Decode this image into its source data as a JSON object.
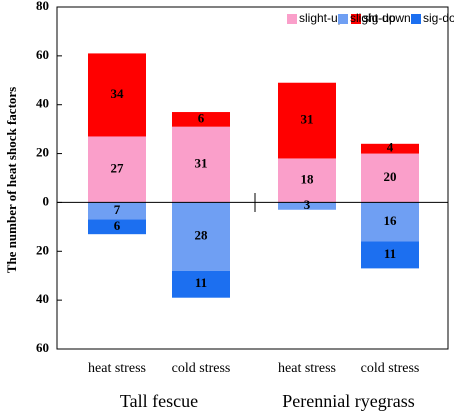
{
  "chart_data": {
    "type": "diverging-stacked-bar",
    "y_axis_label": "The number of heat shock factors",
    "categories": [
      "heat stress",
      "cold stress",
      "heat stress",
      "cold stress"
    ],
    "groups": [
      {
        "label": "Tall fescue",
        "categories": [
          0,
          1
        ]
      },
      {
        "label": "Perennial ryegrass",
        "categories": [
          2,
          3
        ]
      }
    ],
    "series": [
      {
        "name": "slight-up",
        "color": "#fa9fca",
        "values": [
          27,
          31,
          18,
          20
        ]
      },
      {
        "name": "sig-up",
        "color": "#ff0000",
        "values": [
          34,
          6,
          31,
          4
        ]
      },
      {
        "name": "slight-down",
        "color": "#6f9ff3",
        "values": [
          -7,
          -28,
          -3,
          -16
        ],
        "value_labels": [
          "7",
          "28",
          "3",
          "16"
        ]
      },
      {
        "name": "sig-down",
        "color": "#1c6ff0",
        "values": [
          -6,
          -11,
          null,
          -11
        ],
        "value_labels": [
          "6",
          "11",
          null,
          "11"
        ]
      }
    ],
    "ylim": [
      -60,
      80
    ],
    "yticks": [
      {
        "value": -60,
        "label": "60"
      },
      {
        "value": -40,
        "label": "40"
      },
      {
        "value": -20,
        "label": "20"
      },
      0,
      20,
      40,
      60,
      80
    ],
    "legend": "top-right",
    "grid": false
  }
}
